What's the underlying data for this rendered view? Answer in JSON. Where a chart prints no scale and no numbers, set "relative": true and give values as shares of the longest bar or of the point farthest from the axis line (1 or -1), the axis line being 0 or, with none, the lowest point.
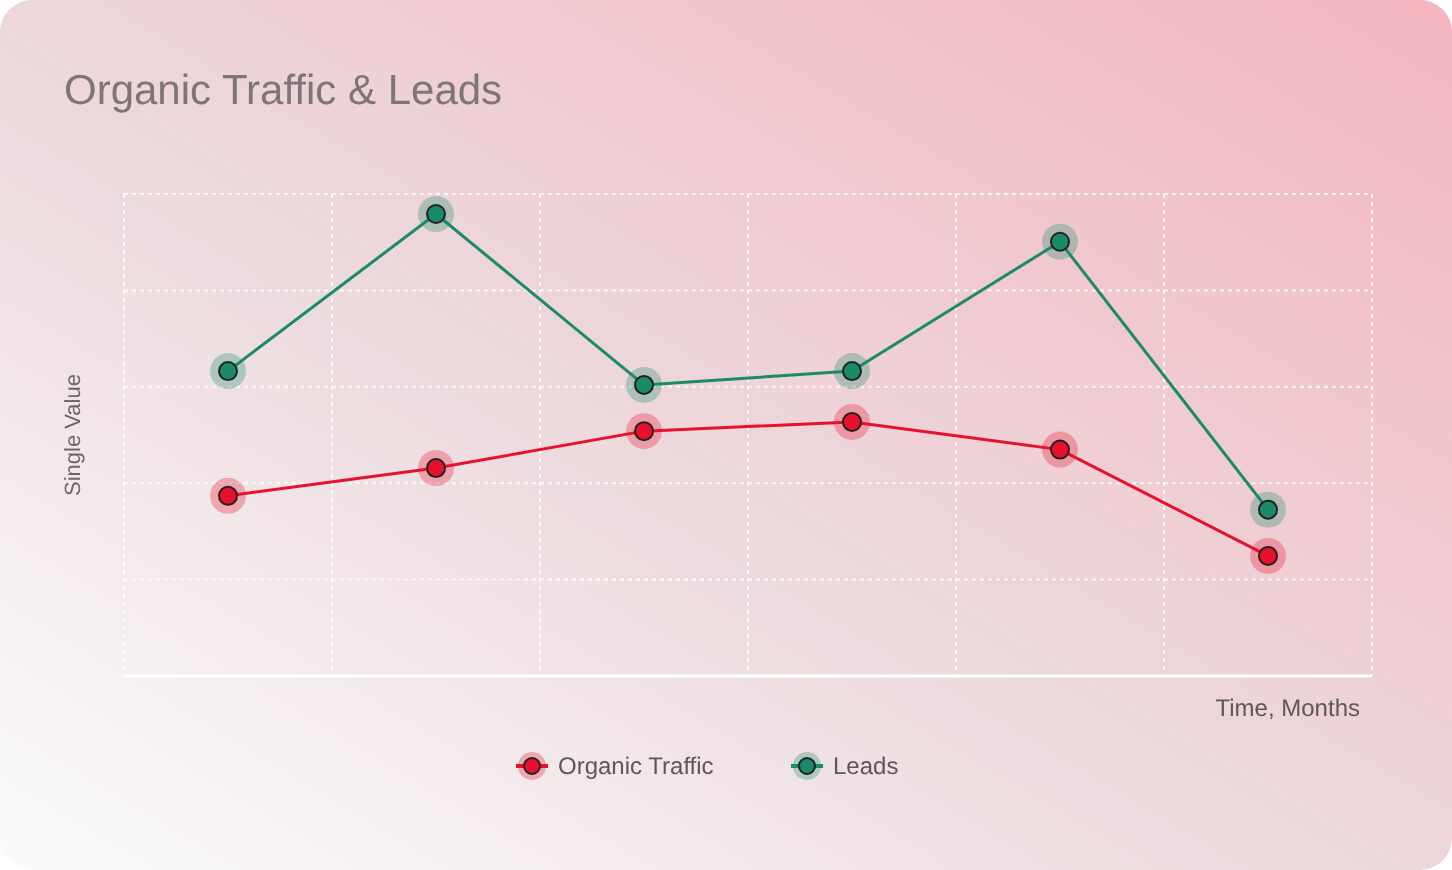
{
  "chart_data": {
    "type": "line",
    "title": "Organic Traffic & Leads",
    "xlabel": "Time, Months",
    "ylabel": "Single Value",
    "relative": true,
    "categories": [
      null,
      null,
      null,
      null,
      null,
      null
    ],
    "series": [
      {
        "name": "Organic Traffic",
        "color": "#e8112d",
        "values": [
          0.39,
          0.45,
          0.53,
          0.55,
          0.49,
          0.26
        ]
      },
      {
        "name": "Leads",
        "color": "#1a8a6a",
        "values": [
          0.66,
          1,
          0.63,
          0.66,
          0.94,
          0.36
        ]
      }
    ],
    "grid": true,
    "legend": "bottom",
    "marker": "circle",
    "line_style": "solid"
  }
}
